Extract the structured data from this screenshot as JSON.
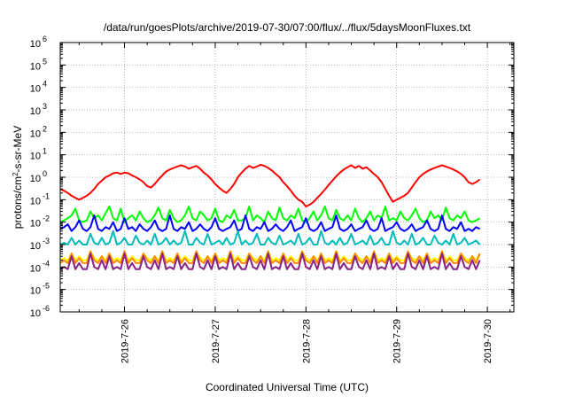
{
  "chart_data": {
    "type": "line",
    "title": "/data/run/goesPlots/archive/2019-07-30/07:00/flux/../flux/5daysMoonFluxes.txt",
    "xlabel": "Coordinated Universal Time (UTC)",
    "ylabel_parts": [
      "protons/cm",
      "2",
      "-s-sr-MeV"
    ],
    "y_scale": "log",
    "ylim": [
      1e-06,
      1000000.0
    ],
    "y_ticks": [
      {
        "base": "10",
        "exp": "-6"
      },
      {
        "base": "10",
        "exp": "-5"
      },
      {
        "base": "10",
        "exp": "-4"
      },
      {
        "base": "10",
        "exp": "-3"
      },
      {
        "base": "10",
        "exp": "-2"
      },
      {
        "base": "10",
        "exp": "-1"
      },
      {
        "base": "10",
        "exp": "0"
      },
      {
        "base": "10",
        "exp": "1"
      },
      {
        "base": "10",
        "exp": "2"
      },
      {
        "base": "10",
        "exp": "3"
      },
      {
        "base": "10",
        "exp": "4"
      },
      {
        "base": "10",
        "exp": "5"
      },
      {
        "base": "10",
        "exp": "6"
      }
    ],
    "x_scale": "date",
    "xlim": [
      "2019-07-25 07:00",
      "2019-07-30 07:00"
    ],
    "x_ticks": [
      "2019-7-26",
      "2019-7-27",
      "2019-7-28",
      "2019-7-29",
      "2019-7-30"
    ],
    "grid": true,
    "legend": "none",
    "sample_hours": 1,
    "series": [
      {
        "color": "#ff0000",
        "values": [
          0.3,
          0.25,
          0.2,
          0.15,
          0.12,
          0.1,
          0.12,
          0.15,
          0.2,
          0.3,
          0.5,
          0.7,
          1.0,
          1.2,
          1.5,
          1.6,
          1.4,
          1.6,
          1.5,
          1.2,
          1.0,
          0.8,
          0.6,
          0.4,
          0.35,
          0.5,
          0.8,
          1.2,
          1.8,
          2.2,
          2.6,
          3.0,
          3.4,
          3.0,
          2.4,
          2.8,
          3.2,
          2.4,
          1.6,
          1.2,
          0.8,
          0.5,
          0.35,
          0.25,
          0.2,
          0.3,
          0.5,
          1.0,
          1.6,
          2.4,
          3.2,
          2.6,
          3.0,
          3.6,
          3.2,
          2.6,
          2.0,
          1.4,
          1.0,
          0.6,
          0.4,
          0.25,
          0.15,
          0.1,
          0.08,
          0.05,
          0.06,
          0.08,
          0.12,
          0.18,
          0.28,
          0.45,
          0.7,
          1.1,
          1.6,
          2.2,
          2.8,
          3.4,
          2.6,
          3.2,
          2.4,
          2.8,
          2.0,
          1.4,
          1.0,
          0.6,
          0.3,
          0.15,
          0.08,
          0.1,
          0.12,
          0.15,
          0.2,
          0.35,
          0.6,
          1.0,
          1.4,
          1.8,
          2.2,
          2.6,
          3.0,
          3.4,
          3.0,
          2.6,
          2.2,
          1.8,
          1.4,
          1.0,
          0.6,
          0.5,
          0.6,
          0.8
        ]
      },
      {
        "color": "#00ff00",
        "values": [
          0.01,
          0.012,
          0.015,
          0.02,
          0.04,
          0.012,
          0.01,
          0.012,
          0.03,
          0.015,
          0.02,
          0.012,
          0.025,
          0.05,
          0.015,
          0.012,
          0.04,
          0.01,
          0.015,
          0.02,
          0.012,
          0.03,
          0.015,
          0.01,
          0.012,
          0.02,
          0.045,
          0.015,
          0.012,
          0.035,
          0.015,
          0.01,
          0.012,
          0.02,
          0.05,
          0.015,
          0.012,
          0.03,
          0.02,
          0.012,
          0.015,
          0.04,
          0.012,
          0.01,
          0.02,
          0.015,
          0.035,
          0.012,
          0.012,
          0.015,
          0.05,
          0.012,
          0.02,
          0.015,
          0.01,
          0.03,
          0.015,
          0.012,
          0.045,
          0.015,
          0.012,
          0.02,
          0.015,
          0.04,
          0.012,
          0.01,
          0.015,
          0.03,
          0.012,
          0.02,
          0.05,
          0.015,
          0.012,
          0.035,
          0.015,
          0.012,
          0.02,
          0.012,
          0.04,
          0.015,
          0.01,
          0.015,
          0.03,
          0.012,
          0.02,
          0.015,
          0.05,
          0.012,
          0.015,
          0.012,
          0.03,
          0.015,
          0.012,
          0.02,
          0.04,
          0.015,
          0.01,
          0.012,
          0.03,
          0.015,
          0.02,
          0.012,
          0.045,
          0.015,
          0.012,
          0.02,
          0.015,
          0.03,
          0.012,
          0.01,
          0.012,
          0.015
        ]
      },
      {
        "color": "#0000ff",
        "values": [
          0.005,
          0.006,
          0.008,
          0.004,
          0.006,
          0.012,
          0.005,
          0.004,
          0.006,
          0.02,
          0.005,
          0.004,
          0.006,
          0.005,
          0.01,
          0.004,
          0.005,
          0.015,
          0.005,
          0.006,
          0.004,
          0.008,
          0.005,
          0.004,
          0.006,
          0.012,
          0.005,
          0.004,
          0.005,
          0.02,
          0.005,
          0.004,
          0.006,
          0.005,
          0.01,
          0.004,
          0.005,
          0.008,
          0.005,
          0.004,
          0.006,
          0.015,
          0.005,
          0.004,
          0.005,
          0.006,
          0.012,
          0.004,
          0.005,
          0.02,
          0.005,
          0.004,
          0.006,
          0.005,
          0.01,
          0.004,
          0.005,
          0.008,
          0.005,
          0.004,
          0.006,
          0.012,
          0.004,
          0.005,
          0.006,
          0.015,
          0.005,
          0.004,
          0.005,
          0.01,
          0.004,
          0.005,
          0.006,
          0.02,
          0.005,
          0.004,
          0.005,
          0.008,
          0.004,
          0.005,
          0.006,
          0.012,
          0.005,
          0.004,
          0.005,
          0.015,
          0.004,
          0.005,
          0.006,
          0.01,
          0.005,
          0.004,
          0.005,
          0.008,
          0.004,
          0.005,
          0.006,
          0.012,
          0.005,
          0.004,
          0.005,
          0.02,
          0.005,
          0.004,
          0.006,
          0.005,
          0.01,
          0.004,
          0.005,
          0.004,
          0.006,
          0.005
        ]
      },
      {
        "color": "#00bbbb",
        "values": [
          0.001,
          0.0012,
          0.001,
          0.002,
          0.001,
          0.0015,
          0.001,
          0.001,
          0.003,
          0.0012,
          0.001,
          0.002,
          0.001,
          0.0012,
          0.004,
          0.001,
          0.0012,
          0.002,
          0.001,
          0.001,
          0.0025,
          0.0012,
          0.001,
          0.0015,
          0.001,
          0.003,
          0.001,
          0.0012,
          0.002,
          0.001,
          0.0015,
          0.001,
          0.0012,
          0.004,
          0.001,
          0.001,
          0.002,
          0.0012,
          0.001,
          0.003,
          0.001,
          0.0012,
          0.0015,
          0.001,
          0.002,
          0.001,
          0.0012,
          0.004,
          0.001,
          0.0015,
          0.001,
          0.0012,
          0.003,
          0.001,
          0.001,
          0.002,
          0.0012,
          0.001,
          0.0025,
          0.001,
          0.0012,
          0.0015,
          0.001,
          0.003,
          0.001,
          0.0012,
          0.002,
          0.001,
          0.001,
          0.004,
          0.0012,
          0.001,
          0.0015,
          0.001,
          0.002,
          0.001,
          0.0012,
          0.003,
          0.001,
          0.0012,
          0.0015,
          0.001,
          0.0025,
          0.001,
          0.0012,
          0.002,
          0.001,
          0.001,
          0.004,
          0.0012,
          0.001,
          0.0015,
          0.001,
          0.003,
          0.001,
          0.0012,
          0.002,
          0.001,
          0.001,
          0.0025,
          0.0012,
          0.001,
          0.0015,
          0.001,
          0.003,
          0.001,
          0.0012,
          0.002,
          0.001,
          0.0012,
          0.0015,
          0.001
        ]
      },
      {
        "color": "#ffff00",
        "values": [
          0.0002,
          0.00025,
          0.0002,
          0.0004,
          0.0002,
          0.0003,
          0.0002,
          0.0002,
          0.0005,
          0.00025,
          0.0002,
          0.0003,
          0.0002,
          0.0004,
          0.0002,
          0.00025,
          0.0002,
          0.0005,
          0.0002,
          0.0003,
          0.0002,
          0.0002,
          0.0004,
          0.00025,
          0.0002,
          0.0003,
          0.0002,
          0.0005,
          0.0002,
          0.00025,
          0.0002,
          0.0004,
          0.0002,
          0.0003,
          0.0002,
          0.0002,
          0.0005,
          0.00025,
          0.0002,
          0.0003,
          0.0002,
          0.0004,
          0.0002,
          0.00025,
          0.0002,
          0.0005,
          0.0002,
          0.0003,
          0.0002,
          0.0002,
          0.0004,
          0.00025,
          0.0002,
          0.0003,
          0.0002,
          0.0005,
          0.0002,
          0.00025,
          0.0002,
          0.0004,
          0.0002,
          0.0003,
          0.0002,
          0.0002,
          0.0005,
          0.00025,
          0.0002,
          0.0003,
          0.0002,
          0.0004,
          0.0002,
          0.00025,
          0.0002,
          0.0005,
          0.0002,
          0.0003,
          0.0002,
          0.0002,
          0.0004,
          0.00025,
          0.0002,
          0.0003,
          0.0002,
          0.0005,
          0.0002,
          0.00025,
          0.0002,
          0.0004,
          0.0002,
          0.0003,
          0.0002,
          0.0002,
          0.0005,
          0.00025,
          0.0002,
          0.0003,
          0.0002,
          0.0004,
          0.0002,
          0.00025,
          0.0002,
          0.0005,
          0.0002,
          0.0003,
          0.0002,
          0.0002,
          0.0004,
          0.00025,
          0.0002,
          0.0003,
          0.0002,
          0.0004
        ]
      },
      {
        "color": "#ff8800",
        "values": [
          0.00015,
          0.0002,
          0.00015,
          0.0004,
          0.00015,
          0.00025,
          0.00015,
          0.00015,
          0.0005,
          0.0002,
          0.00015,
          0.0003,
          0.00015,
          0.0004,
          0.00015,
          0.0002,
          0.00015,
          0.0005,
          0.00015,
          0.00025,
          0.00015,
          0.00015,
          0.0004,
          0.0002,
          0.00015,
          0.0003,
          0.00015,
          0.0005,
          0.00015,
          0.0002,
          0.00015,
          0.0004,
          0.00015,
          0.00025,
          0.00015,
          0.00015,
          0.0005,
          0.0002,
          0.00015,
          0.0003,
          0.00015,
          0.0004,
          0.00015,
          0.0002,
          0.00015,
          0.0005,
          0.00015,
          0.00025,
          0.00015,
          0.00015,
          0.0004,
          0.0002,
          0.00015,
          0.0003,
          0.00015,
          0.0005,
          0.00015,
          0.0002,
          0.00015,
          0.0004,
          0.00015,
          0.00025,
          0.00015,
          0.00015,
          0.0005,
          0.0002,
          0.00015,
          0.0003,
          0.00015,
          0.0004,
          0.00015,
          0.0002,
          0.00015,
          0.0005,
          0.00015,
          0.00025,
          0.00015,
          0.00015,
          0.0004,
          0.0002,
          0.00015,
          0.0003,
          0.00015,
          0.0005,
          0.00015,
          0.0002,
          0.00015,
          0.0004,
          0.00015,
          0.00025,
          0.00015,
          0.00015,
          0.0005,
          0.0002,
          0.00015,
          0.0003,
          0.00015,
          0.0004,
          0.00015,
          0.0002,
          0.00015,
          0.0005,
          0.00015,
          0.00025,
          0.00015,
          0.00015,
          0.0004,
          0.0002,
          0.00015,
          0.0003,
          0.00015,
          0.0004
        ]
      },
      {
        "color": "#882288",
        "values": [
          8e-05,
          0.0001,
          8e-05,
          0.0003,
          8e-05,
          0.00015,
          8e-05,
          8e-05,
          0.0004,
          0.0001,
          8e-05,
          0.0002,
          8e-05,
          0.0003,
          8e-05,
          0.0001,
          8e-05,
          0.0004,
          8e-05,
          0.00015,
          8e-05,
          8e-05,
          0.0003,
          0.0001,
          8e-05,
          0.0002,
          8e-05,
          0.0004,
          8e-05,
          0.0001,
          8e-05,
          0.0003,
          8e-05,
          0.00015,
          8e-05,
          8e-05,
          0.0004,
          0.0001,
          8e-05,
          0.0002,
          8e-05,
          0.0003,
          8e-05,
          0.0001,
          8e-05,
          0.0004,
          8e-05,
          0.00015,
          8e-05,
          8e-05,
          0.0003,
          0.0001,
          8e-05,
          0.0002,
          8e-05,
          0.0004,
          8e-05,
          0.0001,
          8e-05,
          0.0003,
          8e-05,
          0.00015,
          8e-05,
          8e-05,
          0.0004,
          0.0001,
          8e-05,
          0.0002,
          8e-05,
          0.0003,
          8e-05,
          0.0001,
          8e-05,
          0.0004,
          8e-05,
          0.00015,
          8e-05,
          8e-05,
          0.0003,
          0.0001,
          8e-05,
          0.0002,
          8e-05,
          0.0004,
          8e-05,
          0.0001,
          8e-05,
          0.0003,
          8e-05,
          0.00015,
          8e-05,
          8e-05,
          0.0004,
          0.0001,
          8e-05,
          0.0002,
          8e-05,
          0.0003,
          8e-05,
          0.0001,
          8e-05,
          0.0004,
          8e-05,
          0.00015,
          8e-05,
          8e-05,
          0.0003,
          0.0001,
          8e-05,
          0.0002,
          8e-05,
          0.0002
        ]
      }
    ]
  }
}
